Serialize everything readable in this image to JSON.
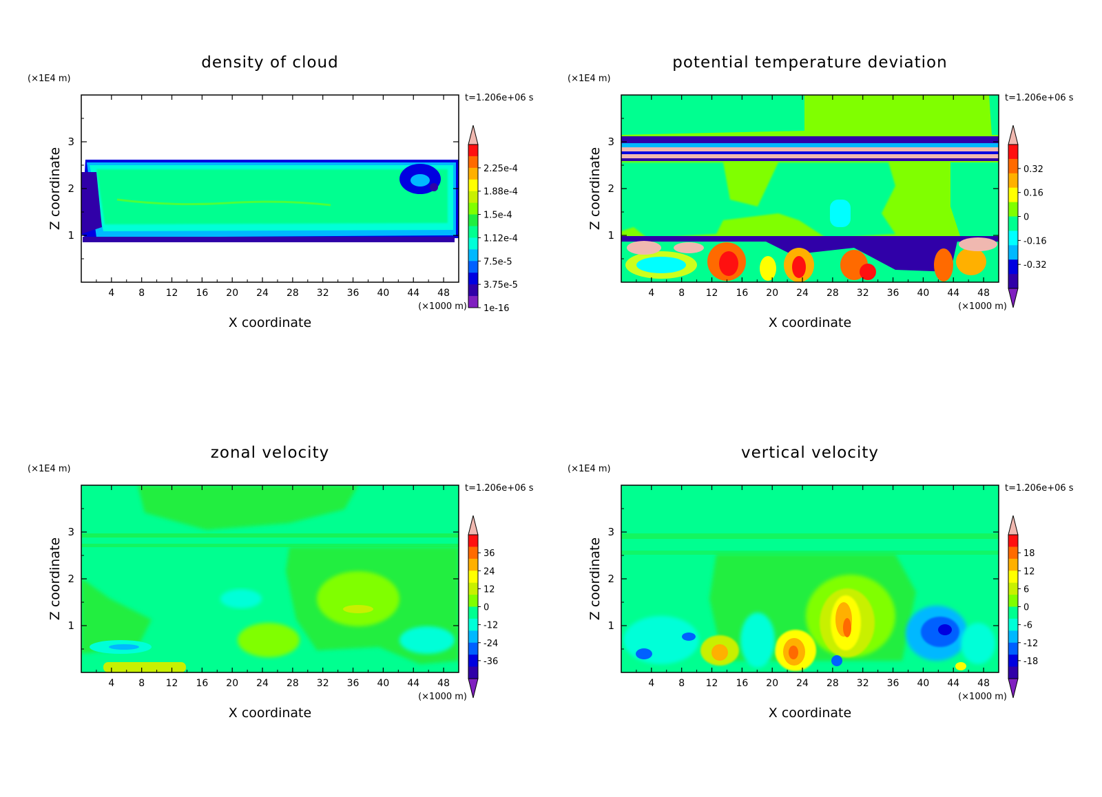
{
  "chart_data": [
    {
      "type": "heatmap",
      "title": "density of cloud",
      "xlabel": "X coordinate",
      "ylabel": "Z coordinate",
      "x_unit": "(×1000 m)",
      "y_unit": "(×1E4 m)",
      "time_label": "t=1.206e+06 s",
      "x_ticks": [
        "4",
        "8",
        "12",
        "16",
        "20",
        "24",
        "28",
        "32",
        "36",
        "40",
        "44",
        "48"
      ],
      "y_ticks": [
        "1",
        "2",
        "3"
      ],
      "xlim": [
        0,
        50
      ],
      "ylim": [
        0,
        4
      ],
      "colorbar_labels": [
        "2.25e-4",
        "1.88e-4",
        "1.5e-4",
        "1.12e-4",
        "7.5e-5",
        "3.75e-5",
        "1e-16"
      ],
      "colorbar_colors": [
        "#f0b8b0",
        "#ff1010",
        "#ff6a00",
        "#ffb000",
        "#ffff00",
        "#c8f000",
        "#80ff00",
        "#20ee40",
        "#00ff90",
        "#00ffd8",
        "#00b8ff",
        "#0060ff",
        "#0000e0",
        "#3000a8",
        "#8020c0"
      ],
      "colorbar_arrows": "top"
    },
    {
      "type": "heatmap",
      "title": "potential temperature deviation",
      "xlabel": "X coordinate",
      "ylabel": "Z coordinate",
      "x_unit": "(×1000 m)",
      "y_unit": "(×1E4 m)",
      "time_label": "t=1.206e+06 s",
      "x_ticks": [
        "4",
        "8",
        "12",
        "16",
        "20",
        "24",
        "28",
        "32",
        "36",
        "40",
        "44",
        "48"
      ],
      "y_ticks": [
        "1",
        "2",
        "3"
      ],
      "xlim": [
        0,
        50
      ],
      "ylim": [
        0,
        4
      ],
      "colorbar_labels": [
        "0.32",
        "0.16",
        "0",
        "-0.16",
        "-0.32"
      ],
      "colorbar_colors": [
        "#f0b8b0",
        "#ff1010",
        "#ff6a00",
        "#ffb000",
        "#ffff00",
        "#80ff00",
        "#00ff90",
        "#00ffff",
        "#00b8ff",
        "#0000e0",
        "#3000a8",
        "#8020c0"
      ],
      "colorbar_arrows": "both"
    },
    {
      "type": "heatmap",
      "title": "zonal velocity",
      "xlabel": "X coordinate",
      "ylabel": "Z coordinate",
      "x_unit": "(×1000 m)",
      "y_unit": "(×1E4 m)",
      "time_label": "t=1.206e+06 s",
      "x_ticks": [
        "4",
        "8",
        "12",
        "16",
        "20",
        "24",
        "28",
        "32",
        "36",
        "40",
        "44",
        "48"
      ],
      "y_ticks": [
        "1",
        "2",
        "3"
      ],
      "xlim": [
        0,
        50
      ],
      "ylim": [
        0,
        4
      ],
      "colorbar_labels": [
        "36",
        "24",
        "12",
        "0",
        "-12",
        "-24",
        "-36"
      ],
      "colorbar_colors": [
        "#f0b8b0",
        "#ff1010",
        "#ff6a00",
        "#ffb000",
        "#ffff00",
        "#c8f000",
        "#80ff00",
        "#00ff90",
        "#00ffd8",
        "#00b8ff",
        "#0060ff",
        "#0000e0",
        "#3000a8",
        "#8020c0"
      ],
      "colorbar_arrows": "both"
    },
    {
      "type": "heatmap",
      "title": "vertical velocity",
      "xlabel": "X coordinate",
      "ylabel": "Z coordinate",
      "x_unit": "(×1000 m)",
      "y_unit": "(×1E4 m)",
      "time_label": "t=1.206e+06 s",
      "x_ticks": [
        "4",
        "8",
        "12",
        "16",
        "20",
        "24",
        "28",
        "32",
        "36",
        "40",
        "44",
        "48"
      ],
      "y_ticks": [
        "1",
        "2",
        "3"
      ],
      "xlim": [
        0,
        50
      ],
      "ylim": [
        0,
        4
      ],
      "colorbar_labels": [
        "18",
        "12",
        "6",
        "0",
        "-6",
        "-12",
        "-18"
      ],
      "colorbar_colors": [
        "#f0b8b0",
        "#ff1010",
        "#ff6a00",
        "#ffb000",
        "#ffff00",
        "#c8f000",
        "#80ff00",
        "#00ff90",
        "#00ffd8",
        "#00b8ff",
        "#0060ff",
        "#0000e0",
        "#3000a8",
        "#8020c0"
      ],
      "colorbar_arrows": "both"
    }
  ]
}
